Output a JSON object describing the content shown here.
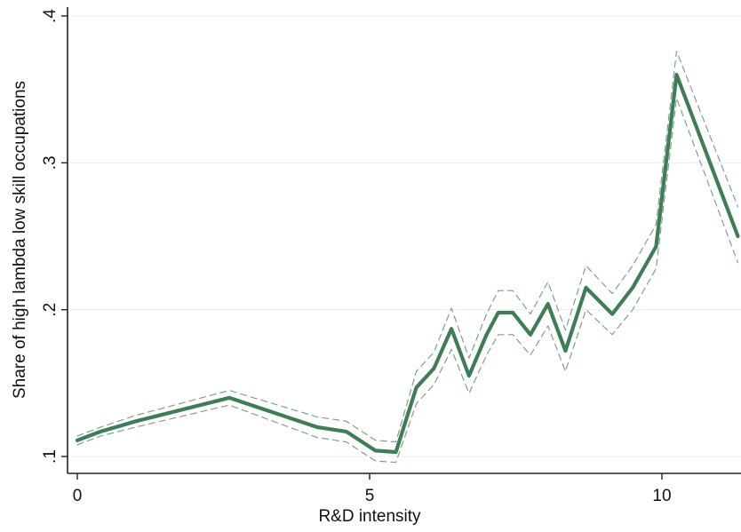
{
  "chart_data": {
    "type": "line",
    "title": "",
    "xlabel": "R&D intensity",
    "ylabel": "Share of high lambda low skill occupations",
    "xlim": [
      0,
      11.3
    ],
    "ylim": [
      0.09,
      0.4
    ],
    "xticks": [
      0,
      5,
      10
    ],
    "xtick_labels": [
      "0",
      "5",
      "10"
    ],
    "yticks": [
      0.1,
      0.2,
      0.3,
      0.4
    ],
    "ytick_labels": [
      ".1",
      ".2",
      ".3",
      ".4"
    ],
    "grid": "horizontal",
    "legend": "none",
    "series": [
      {
        "role": "estimate",
        "style": "solid",
        "color": "#3e7d58",
        "x": [
          0,
          0.4,
          1.0,
          2.6,
          4.1,
          4.6,
          5.1,
          5.45,
          5.8,
          6.1,
          6.4,
          6.7,
          7.0,
          7.2,
          7.45,
          7.75,
          8.05,
          8.35,
          8.7,
          9.15,
          9.5,
          9.9,
          10.25,
          11.3
        ],
        "y": [
          0.111,
          0.117,
          0.124,
          0.14,
          0.12,
          0.117,
          0.104,
          0.103,
          0.147,
          0.16,
          0.187,
          0.155,
          0.183,
          0.198,
          0.198,
          0.183,
          0.204,
          0.172,
          0.215,
          0.197,
          0.215,
          0.243,
          0.36,
          0.25
        ]
      },
      {
        "role": "upper-ci",
        "style": "dashed",
        "color": "#7fa08c",
        "x": [
          0,
          0.4,
          1.0,
          2.6,
          4.1,
          4.6,
          5.1,
          5.45,
          5.8,
          6.1,
          6.4,
          6.7,
          7.0,
          7.2,
          7.45,
          7.75,
          8.05,
          8.35,
          8.7,
          9.15,
          9.5,
          9.9,
          10.25,
          11.3
        ],
        "y": [
          0.114,
          0.12,
          0.128,
          0.145,
          0.127,
          0.124,
          0.111,
          0.11,
          0.158,
          0.171,
          0.201,
          0.167,
          0.197,
          0.213,
          0.213,
          0.197,
          0.219,
          0.186,
          0.23,
          0.211,
          0.23,
          0.258,
          0.376,
          0.27
        ]
      },
      {
        "role": "lower-ci",
        "style": "dashed",
        "color": "#7fa08c",
        "x": [
          0,
          0.4,
          1.0,
          2.6,
          4.1,
          4.6,
          5.1,
          5.45,
          5.8,
          6.1,
          6.4,
          6.7,
          7.0,
          7.2,
          7.45,
          7.75,
          8.05,
          8.35,
          8.7,
          9.15,
          9.5,
          9.9,
          10.25,
          11.3
        ],
        "y": [
          0.108,
          0.114,
          0.12,
          0.135,
          0.113,
          0.11,
          0.097,
          0.096,
          0.136,
          0.149,
          0.173,
          0.143,
          0.169,
          0.183,
          0.183,
          0.169,
          0.189,
          0.158,
          0.2,
          0.183,
          0.2,
          0.228,
          0.344,
          0.232
        ]
      }
    ]
  }
}
